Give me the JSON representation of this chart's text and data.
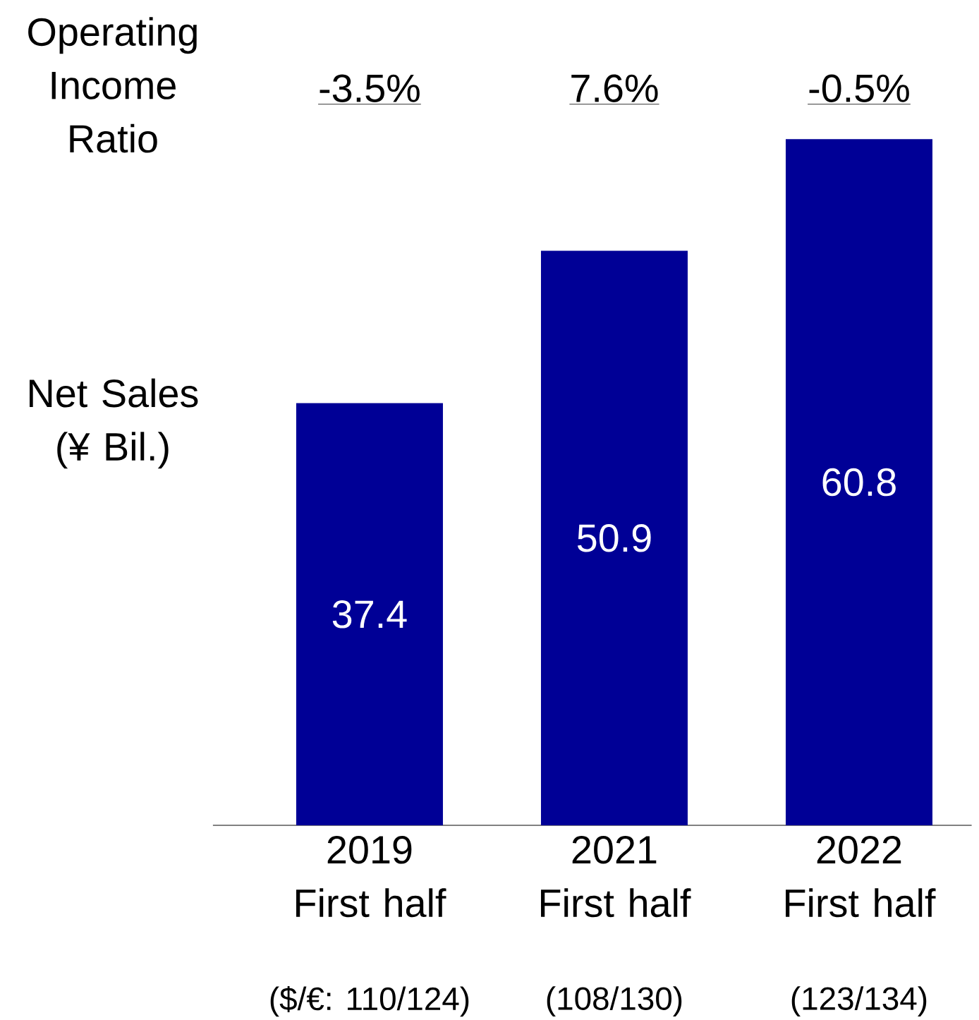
{
  "chart_data": {
    "type": "bar",
    "categories": [
      "2019 First half",
      "2021 First half",
      "2022 First half"
    ],
    "values": [
      37.4,
      50.9,
      60.8
    ],
    "color": "#000096",
    "data_labels": true,
    "tick_labels": "x",
    "annotations": [
      "Operating Income Ratio",
      "Net Sales (¥ Bil.)",
      "-3.5%",
      "7.6%",
      "-0.5%",
      "($/€: 110/124)",
      "(108/130)",
      "(123/134)"
    ]
  }
}
